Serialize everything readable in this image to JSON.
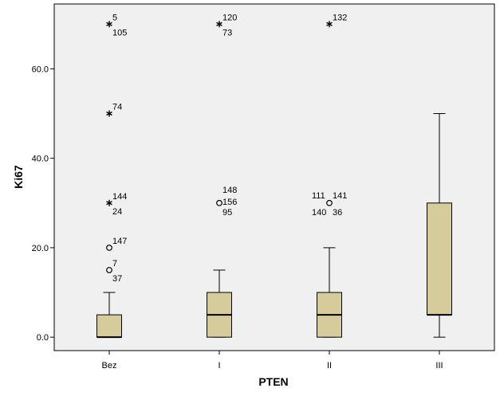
{
  "chart_data": {
    "type": "boxplot",
    "xlabel": "PTEN",
    "ylabel": "Ki67",
    "ylim": [
      -3,
      74.5
    ],
    "yticks": [
      0,
      20,
      40,
      60
    ],
    "ytick_labels": [
      "0.0",
      "20.0",
      "40.0",
      "60.0"
    ],
    "grid": false,
    "colors": {
      "box_fill": "#d6cc9b",
      "plot_bg": "#f0f0f0",
      "stroke": "#000000"
    },
    "categories": [
      "Bez",
      "I",
      "II",
      "III"
    ],
    "boxes": [
      {
        "category": "Bez",
        "whisker_low": 0,
        "q1": 0,
        "median": 0,
        "q3": 5,
        "whisker_high": 10,
        "outliers": [
          {
            "value": 70,
            "marker": "star",
            "labels": [
              "5",
              "105"
            ]
          },
          {
            "value": 50,
            "marker": "star",
            "labels": [
              "74"
            ]
          },
          {
            "value": 30,
            "marker": "star",
            "labels": [
              "144",
              "24"
            ]
          },
          {
            "value": 20,
            "marker": "circle",
            "labels": [
              "147"
            ]
          },
          {
            "value": 15,
            "marker": "circle",
            "labels": [
              "7",
              "37"
            ]
          }
        ]
      },
      {
        "category": "I",
        "whisker_low": 0,
        "q1": 0,
        "median": 5,
        "q3": 10,
        "whisker_high": 15,
        "outliers": [
          {
            "value": 70,
            "marker": "star",
            "labels": [
              "120",
              "73"
            ]
          },
          {
            "value": 30,
            "marker": "circle",
            "labels": [
              "148",
              "156",
              "95"
            ]
          }
        ]
      },
      {
        "category": "II",
        "whisker_low": 0,
        "q1": 0,
        "median": 5,
        "q3": 10,
        "whisker_high": 20,
        "outliers": [
          {
            "value": 70,
            "marker": "star",
            "labels": [
              "132"
            ]
          },
          {
            "value": 30,
            "marker": "circle",
            "labels": [
              "111",
              "141",
              "140",
              "36"
            ]
          }
        ]
      },
      {
        "category": "III",
        "whisker_low": 0,
        "q1": 5,
        "median": 5,
        "q3": 30,
        "whisker_high": 50,
        "outliers": []
      }
    ]
  }
}
